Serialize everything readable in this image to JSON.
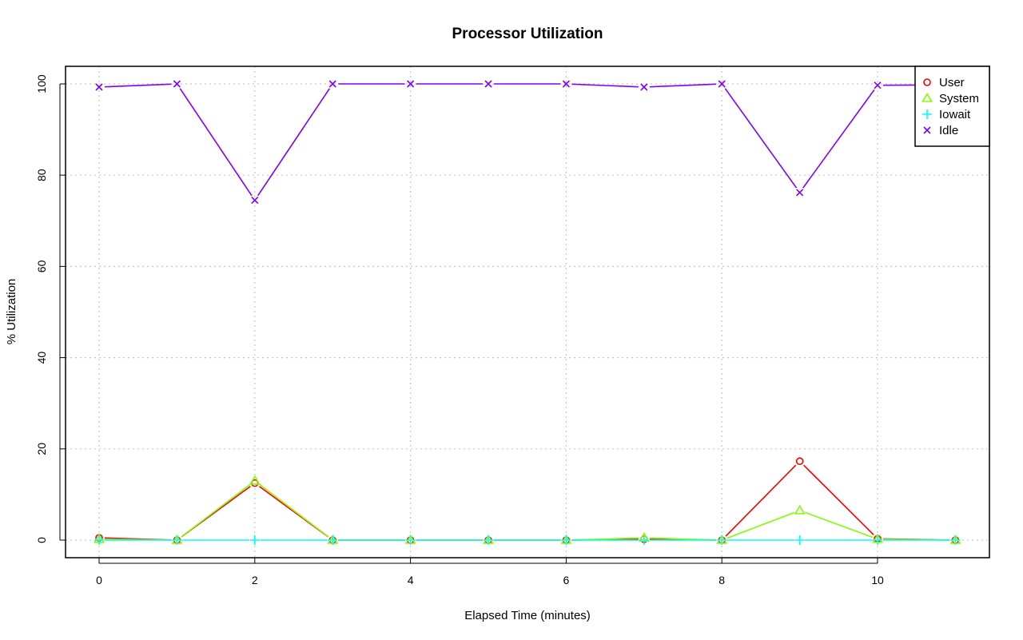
{
  "chart_data": {
    "type": "line",
    "title": "Processor Utilization",
    "xlabel": "Elapsed Time (minutes)",
    "ylabel": "% Utilization",
    "xlim": [
      0,
      11
    ],
    "ylim": [
      0,
      100
    ],
    "x_ticks": [
      "0",
      "2",
      "4",
      "6",
      "8",
      "10"
    ],
    "y_ticks": [
      "0",
      "20",
      "40",
      "60",
      "80",
      "100"
    ],
    "grid": true,
    "legend_position": "top-right",
    "x": [
      0,
      1,
      2,
      3,
      4,
      5,
      6,
      7,
      8,
      9,
      10,
      11
    ],
    "series": [
      {
        "name": "User",
        "color": "#ff0000",
        "marker": "circle",
        "values": [
          0.5,
          0,
          12.5,
          0,
          0,
          0,
          0,
          0.2,
          0,
          17.3,
          0.3,
          0
        ]
      },
      {
        "name": "System",
        "color": "#80ff00",
        "marker": "triangle",
        "values": [
          0.2,
          0,
          13.0,
          0,
          0,
          0,
          0,
          0.5,
          0,
          6.5,
          0.2,
          0
        ]
      },
      {
        "name": "Iowait",
        "color": "#00ffff",
        "marker": "plus",
        "values": [
          0,
          0,
          0,
          0,
          0,
          0,
          0,
          0,
          0,
          0,
          0,
          0
        ]
      },
      {
        "name": "Idle",
        "color": "#8000ff",
        "marker": "cross",
        "values": [
          99.3,
          100,
          74.5,
          100,
          100,
          100,
          100,
          99.3,
          100,
          76.2,
          99.7,
          99.8
        ]
      }
    ]
  }
}
